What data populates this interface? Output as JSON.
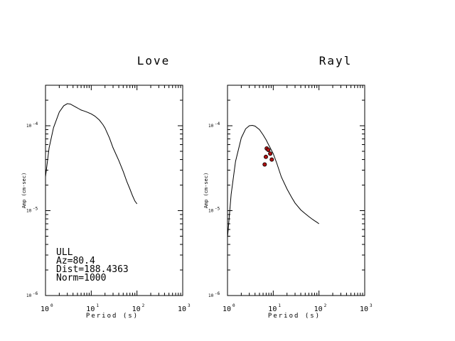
{
  "chart_data": [
    {
      "type": "line",
      "title": "Love",
      "xlabel": "Period (s)",
      "ylabel": "Amp (cm-sec)",
      "xscale": "log",
      "yscale": "log",
      "xlim": [
        1,
        1000
      ],
      "ylim": [
        1e-06,
        0.0003
      ],
      "x_ticks": [
        {
          "base": "10",
          "exp": "0"
        },
        {
          "base": "10",
          "exp": "1"
        },
        {
          "base": "10",
          "exp": "2"
        },
        {
          "base": "10",
          "exp": "3"
        }
      ],
      "y_ticks": [
        {
          "base": "10",
          "exp": "-4"
        },
        {
          "base": "10",
          "exp": "-5"
        },
        {
          "base": "10",
          "exp": "-6"
        }
      ],
      "series": [
        {
          "x": [
            1,
            1.2,
            1.5,
            2,
            2.5,
            3,
            3.5,
            4,
            5,
            6,
            7,
            8,
            10,
            12,
            15,
            18,
            20,
            25,
            30,
            40,
            50,
            60,
            70,
            80,
            90,
            100
          ],
          "y": [
            2.5e-05,
            5.5e-05,
            9.5e-05,
            0.000145,
            0.000172,
            0.000182,
            0.00018,
            0.000173,
            0.000162,
            0.000153,
            0.000149,
            0.000145,
            0.000138,
            0.00013,
            0.000117,
            0.000103,
            9.4e-05,
            7.2e-05,
            5.5e-05,
            3.9e-05,
            2.9e-05,
            2.2e-05,
            1.8e-05,
            1.5e-05,
            1.3e-05,
            1.2e-05
          ]
        }
      ],
      "annotations": [
        "ULL",
        "Az=80.4",
        "Dist=188.4363",
        "Norm=1000"
      ]
    },
    {
      "type": "line",
      "title": "Rayl",
      "xlabel": "Period (s)",
      "ylabel": "Amp (cm-sec)",
      "xscale": "log",
      "yscale": "log",
      "xlim": [
        1,
        1000
      ],
      "ylim": [
        1e-06,
        0.0003
      ],
      "x_ticks": [
        {
          "base": "10",
          "exp": "0"
        },
        {
          "base": "10",
          "exp": "1"
        },
        {
          "base": "10",
          "exp": "2"
        },
        {
          "base": "10",
          "exp": "3"
        }
      ],
      "y_ticks": [
        {
          "base": "10",
          "exp": "-4"
        },
        {
          "base": "10",
          "exp": "-5"
        },
        {
          "base": "10",
          "exp": "-6"
        }
      ],
      "series": [
        {
          "x": [
            1,
            1.2,
            1.5,
            2,
            2.5,
            3,
            3.5,
            4,
            5,
            6,
            7,
            8,
            10,
            12,
            15,
            20,
            25,
            30,
            40,
            50,
            60,
            70,
            80,
            90,
            100
          ],
          "y": [
            4.8e-06,
            1.55e-05,
            3.8e-05,
            7.2e-05,
            9.2e-05,
            0.0001,
            0.000101,
            9.9e-05,
            9e-05,
            7.8e-05,
            6.8e-05,
            5.9e-05,
            4.7e-05,
            3.6e-05,
            2.5e-05,
            1.8e-05,
            1.45e-05,
            1.23e-05,
            1.02e-05,
            9.2e-06,
            8.5e-06,
            8e-06,
            7.6e-06,
            7.3e-06,
            7e-06
          ]
        }
      ],
      "observations": {
        "x": [
          7.2,
          7.8,
          8.6,
          6.9,
          9.3,
          6.5
        ],
        "y": [
          5.4e-05,
          5.2e-05,
          4.7e-05,
          4.3e-05,
          4e-05,
          3.5e-05
        ],
        "color": "#b01010"
      }
    }
  ]
}
